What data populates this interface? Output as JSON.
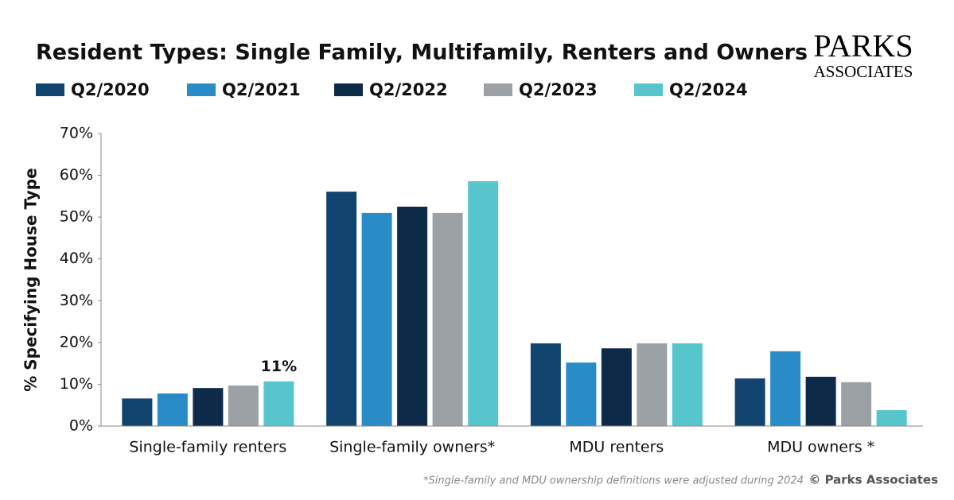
{
  "chart_data": {
    "type": "bar",
    "title": "Resident Types: Single Family, Multifamily, Renters and Owners",
    "y_label": "% Specifying House Type",
    "footnote": "*Single-family and MDU ownership definitions were adjusted during 2024",
    "source": "© Parks Associates",
    "logo": [
      "PARKS",
      "ASSOCIATES"
    ],
    "categories": [
      "Single-family renters",
      "Single-family owners*",
      "MDU renters",
      "MDU owners *"
    ],
    "series": [
      {
        "name": "Q2/2020",
        "color": "#11446f",
        "values": [
          6.6,
          56.1,
          19.8,
          11.4
        ]
      },
      {
        "name": "Q2/2021",
        "color": "#2a8cc6",
        "values": [
          7.8,
          51.0,
          15.2,
          17.9
        ]
      },
      {
        "name": "Q2/2022",
        "color": "#0d2a49",
        "values": [
          9.1,
          52.5,
          18.6,
          11.8
        ]
      },
      {
        "name": "Q2/2023",
        "color": "#9ba1a5",
        "values": [
          9.7,
          51.0,
          19.8,
          10.5
        ]
      },
      {
        "name": "Q2/2024",
        "color": "#56c6cc",
        "values": [
          10.7,
          58.6,
          19.8,
          3.8
        ],
        "value_labels": [
          "11%",
          null,
          null,
          null
        ]
      }
    ],
    "ylim": [
      0,
      70
    ],
    "yticks": [
      {
        "value": 0,
        "label": "0%"
      },
      {
        "value": 10,
        "label": "10%"
      },
      {
        "value": 20,
        "label": "20%"
      },
      {
        "value": 30,
        "label": "30%"
      },
      {
        "value": 40,
        "label": "40%"
      },
      {
        "value": 50,
        "label": "50%"
      },
      {
        "value": 60,
        "label": "60%"
      },
      {
        "value": 70,
        "label": "70%"
      }
    ],
    "grid": false
  }
}
